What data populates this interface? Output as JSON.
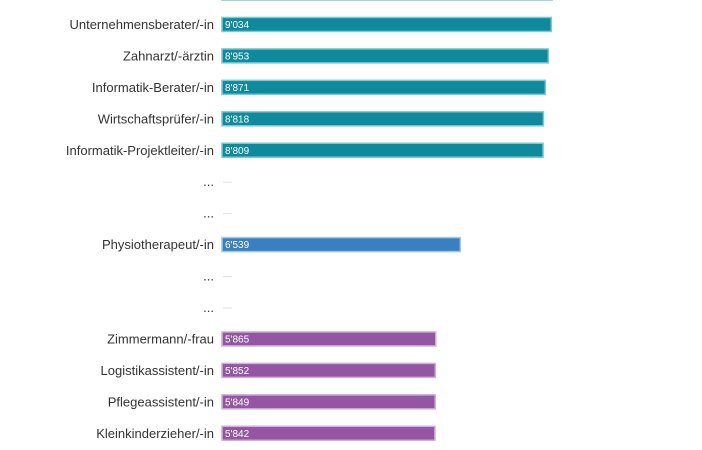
{
  "chart_data": {
    "type": "bar",
    "orientation": "horizontal",
    "xlim": [
      0,
      10000
    ],
    "grid": false,
    "legend": "none",
    "categories": [
      "",
      "Unternehmensberater/-in",
      "Zahnarzt/-ärztin",
      "Informatik-Berater/-in",
      "Wirtschaftsprüfer/-in",
      "Informatik-Projektleiter/-in",
      "...",
      "...",
      "Physiotherapeut/-in",
      "...",
      "...",
      "Zimmermann/-frau",
      "Logistikassistent/-in",
      "Pflegeassistent/-in",
      "Kleinkinderzieher/-in"
    ],
    "values": [
      9060,
      9034,
      8953,
      8871,
      8818,
      8809,
      null,
      null,
      6539,
      null,
      null,
      5865,
      5852,
      5849,
      5842
    ],
    "value_labels": [
      "",
      "9'034",
      "8'953",
      "8'871",
      "8'818",
      "8'809",
      "",
      "",
      "6'539",
      "",
      "",
      "5'865",
      "5'852",
      "5'849",
      "5'842"
    ],
    "colors": [
      "#0f8a9d",
      "#0f8a9d",
      "#0f8a9d",
      "#0f8a9d",
      "#0f8a9d",
      "#0f8a9d",
      "",
      "",
      "#3a7fbf",
      "",
      "",
      "#9456a3",
      "#9456a3",
      "#9456a3",
      "#9456a3"
    ],
    "outline_colors": [
      "#7cc9d4",
      "#7cc9d4",
      "#7cc9d4",
      "#7cc9d4",
      "#7cc9d4",
      "#7cc9d4",
      "",
      "",
      "#a3c6e8",
      "",
      "",
      "#cfb0d8",
      "#cfb0d8",
      "#cfb0d8",
      "#cfb0d8"
    ],
    "placeholder_color": "#e2e2e2"
  }
}
